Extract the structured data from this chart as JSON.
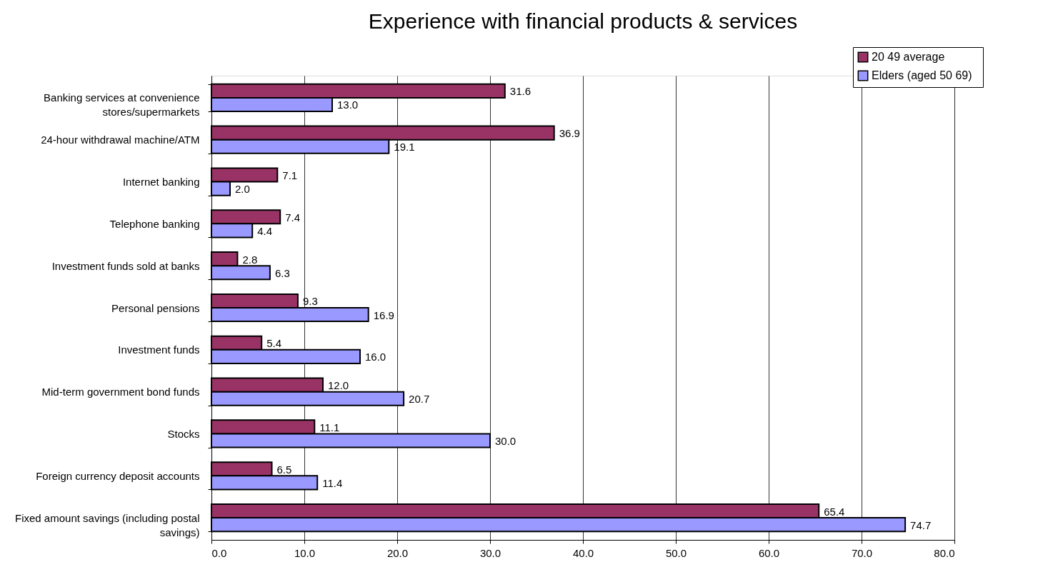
{
  "chart_data": {
    "type": "bar",
    "orientation": "horizontal",
    "title": "Experience with financial products & services",
    "categories": [
      "Banking services at convenience\nstores/supermarkets",
      "24-hour withdrawal machine/ATM",
      "Internet banking",
      "Telephone banking",
      "Investment funds sold at banks",
      "Personal pensions",
      "Investment funds",
      "Mid-term government bond funds",
      "Stocks",
      "Foreign currency deposit accounts",
      "Fixed amount savings (including postal\nsavings)"
    ],
    "series": [
      {
        "name": "20   49 average",
        "color": "#993366",
        "values": [
          31.6,
          36.9,
          7.1,
          7.4,
          2.8,
          9.3,
          5.4,
          12.0,
          11.1,
          6.5,
          65.4
        ],
        "value_labels": [
          "31.6",
          "36.9",
          "7.1",
          "7.4",
          "2.8",
          "9.3",
          "5.4",
          "12.0",
          "11.1",
          "6.5",
          "65.4"
        ]
      },
      {
        "name": "Elders (aged 50   69)",
        "color": "#9999ff",
        "values": [
          13.0,
          19.1,
          2.0,
          4.4,
          6.3,
          16.9,
          16.0,
          20.7,
          30.0,
          11.4,
          74.7
        ],
        "value_labels": [
          "13.0",
          "19.1",
          "2.0",
          "4.4",
          "6.3",
          "16.9",
          "16.0",
          "20.7",
          "30.0",
          "11.4",
          "74.7"
        ]
      }
    ],
    "xlim": [
      0,
      80
    ],
    "xticks": [
      {
        "value": 0,
        "label": "0.0"
      },
      {
        "value": 10,
        "label": "10.0"
      },
      {
        "value": 20,
        "label": "20.0"
      },
      {
        "value": 30,
        "label": "30.0"
      },
      {
        "value": 40,
        "label": "40.0"
      },
      {
        "value": 50,
        "label": "50.0"
      },
      {
        "value": 60,
        "label": "60.0"
      },
      {
        "value": 70,
        "label": "70.0"
      },
      {
        "value": 80,
        "label": "80.0"
      }
    ],
    "grid": "x",
    "legend": "top right"
  }
}
